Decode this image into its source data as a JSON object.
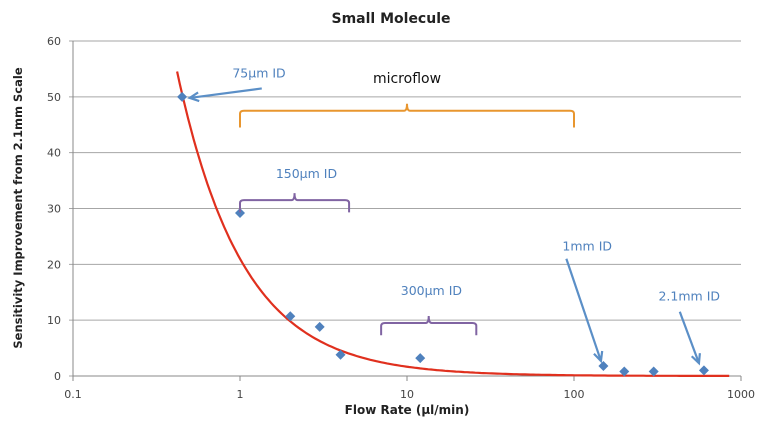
{
  "chart_data": {
    "type": "scatter",
    "title": "Small Molecule",
    "xlabel": "Flow Rate (µl/min)",
    "ylabel": "Sensitivity Improvement from 2.1mm Scale",
    "x_scale": "log",
    "xlim": [
      0.1,
      1000
    ],
    "ylim": [
      0,
      60
    ],
    "x_ticks": [
      "0.1",
      "1",
      "10",
      "100",
      "1000"
    ],
    "y_ticks": [
      "0",
      "10",
      "20",
      "30",
      "40",
      "50",
      "60"
    ],
    "grid": "horizontal",
    "colors": {
      "points": "#4f81bd",
      "trend": "#e0301e",
      "arrow": "#5b8fc7",
      "label": "#4f81bd",
      "microflow_bracket": "#e8962f",
      "id_bracket": "#8064a2"
    },
    "points": [
      {
        "x": 0.45,
        "y": 50
      },
      {
        "x": 1,
        "y": 29.2
      },
      {
        "x": 2,
        "y": 10.7
      },
      {
        "x": 3,
        "y": 8.8
      },
      {
        "x": 4,
        "y": 3.8
      },
      {
        "x": 12,
        "y": 3.2
      },
      {
        "x": 150,
        "y": 1.8
      },
      {
        "x": 200,
        "y": 0.8
      },
      {
        "x": 300,
        "y": 0.8
      },
      {
        "x": 600,
        "y": 1.0
      }
    ],
    "trendline": {
      "type": "power",
      "a": 21,
      "b": -1.1,
      "x_from": 0.42,
      "x_to": 850
    },
    "annotations": {
      "labels": [
        {
          "text": "75µm ID",
          "x": 1.3,
          "y": 53.5
        },
        {
          "text": "microflow",
          "x": 10,
          "y": 52.5
        },
        {
          "text": "150µm ID",
          "x": 2.5,
          "y": 35.5
        },
        {
          "text": "300µm ID",
          "x": 14,
          "y": 14.5
        },
        {
          "text": "1mm ID",
          "x": 120,
          "y": 22.5
        },
        {
          "text": "2.1mm ID",
          "x": 490,
          "y": 13.5
        }
      ],
      "arrows": [
        {
          "from": [
            1.35,
            51.5
          ],
          "to": [
            0.5,
            49.8
          ]
        },
        {
          "from": [
            90,
            21
          ],
          "to": [
            145,
            2.7
          ]
        },
        {
          "from": [
            430,
            11.5
          ],
          "to": [
            560,
            2.3
          ]
        }
      ],
      "brackets": [
        {
          "x_from": 1,
          "x_to": 100,
          "y": 47.5,
          "depth": 3,
          "color_key": "microflow_bracket"
        },
        {
          "x_from": 1,
          "x_to": 4.5,
          "y": 31.5,
          "depth": 2.2,
          "color_key": "id_bracket"
        },
        {
          "x_from": 7,
          "x_to": 26,
          "y": 9.5,
          "depth": 2.2,
          "color_key": "id_bracket"
        }
      ]
    }
  }
}
